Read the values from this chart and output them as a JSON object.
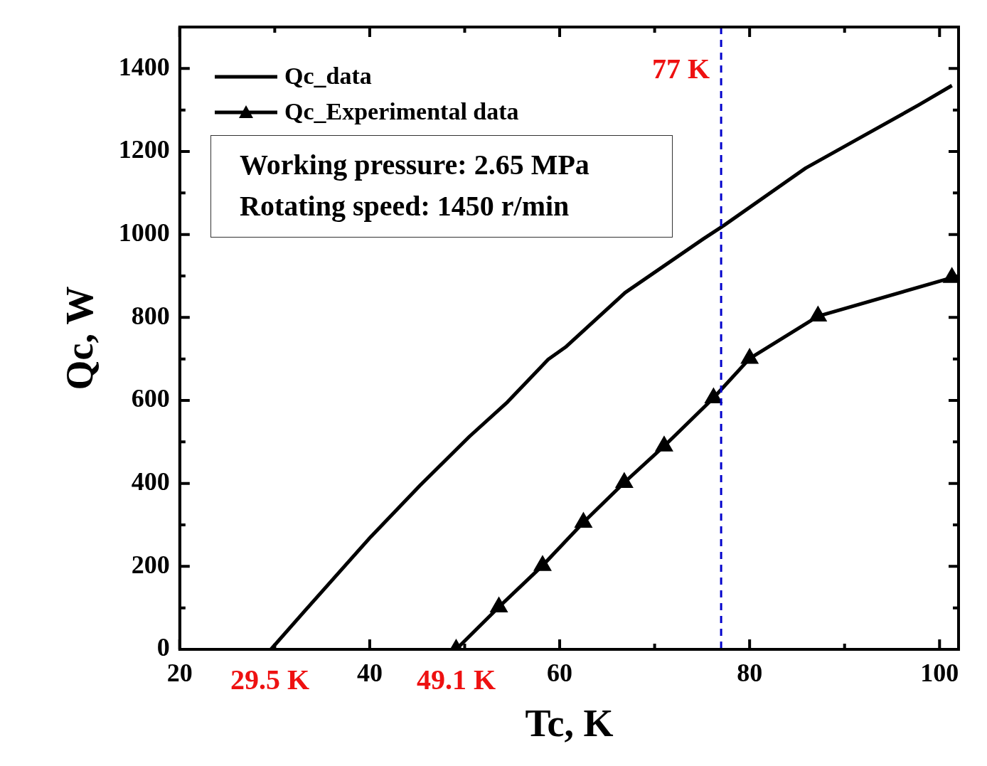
{
  "chart_data": {
    "type": "line",
    "xlabel": "Tc, K",
    "ylabel": "Qc, W",
    "xlim": [
      20,
      102
    ],
    "xticks": [
      20,
      {
        "value": 30,
        "label": null
      },
      40,
      {
        "value": 50,
        "label": null
      },
      60,
      {
        "value": 70,
        "label": null
      },
      80,
      {
        "value": 90,
        "label": null
      },
      100
    ],
    "ylim": [
      0,
      1500
    ],
    "yticks": [
      0,
      {
        "value": 100,
        "label": null
      },
      200,
      {
        "value": 300,
        "label": null
      },
      400,
      {
        "value": 500,
        "label": null
      },
      600,
      {
        "value": 700,
        "label": null
      },
      800,
      {
        "value": 900,
        "label": null
      },
      1000,
      {
        "value": 1100,
        "label": null
      },
      1200,
      {
        "value": 1300,
        "label": null
      },
      1400,
      {
        "value": 1500,
        "label": null
      }
    ],
    "grid": false,
    "legend": "top left",
    "line_style": "solid",
    "series": [
      {
        "name": "Qc_data",
        "color": "#000000",
        "marker": "none",
        "x": [
          29.6,
          33.1,
          40.1,
          45.3,
          50.5,
          54.5,
          58.8,
          60.7,
          66.9,
          75.1,
          77.3,
          85.9,
          91.3,
          97.8,
          101.3
        ],
        "values": [
          0,
          91,
          271,
          395,
          513,
          596,
          699,
          730,
          860,
          989,
          1022,
          1160,
          1229,
          1312,
          1359
        ]
      },
      {
        "name": "Qc_Experimental data",
        "color": "#000000",
        "marker": "triangle",
        "x": [
          49.1,
          53.6,
          58.2,
          62.5,
          66.8,
          71.0,
          76.2,
          80.0,
          87.2,
          101.3
        ],
        "values": [
          0,
          102,
          202,
          306,
          402,
          490,
          606,
          701,
          803,
          896
        ]
      }
    ],
    "ref_lines": [
      {
        "axis": "x",
        "value": 77,
        "label": "77 K",
        "color": "#0000cc",
        "line_style": "dashed"
      }
    ],
    "annotations": [
      "Working pressure: 2.65 MPa",
      "Rotating speed: 1450 r/min",
      {
        "text": "29.5 K",
        "x": 29.5,
        "y": 0
      },
      {
        "text": "49.1 K",
        "x": 49.1,
        "y": 0
      }
    ]
  }
}
